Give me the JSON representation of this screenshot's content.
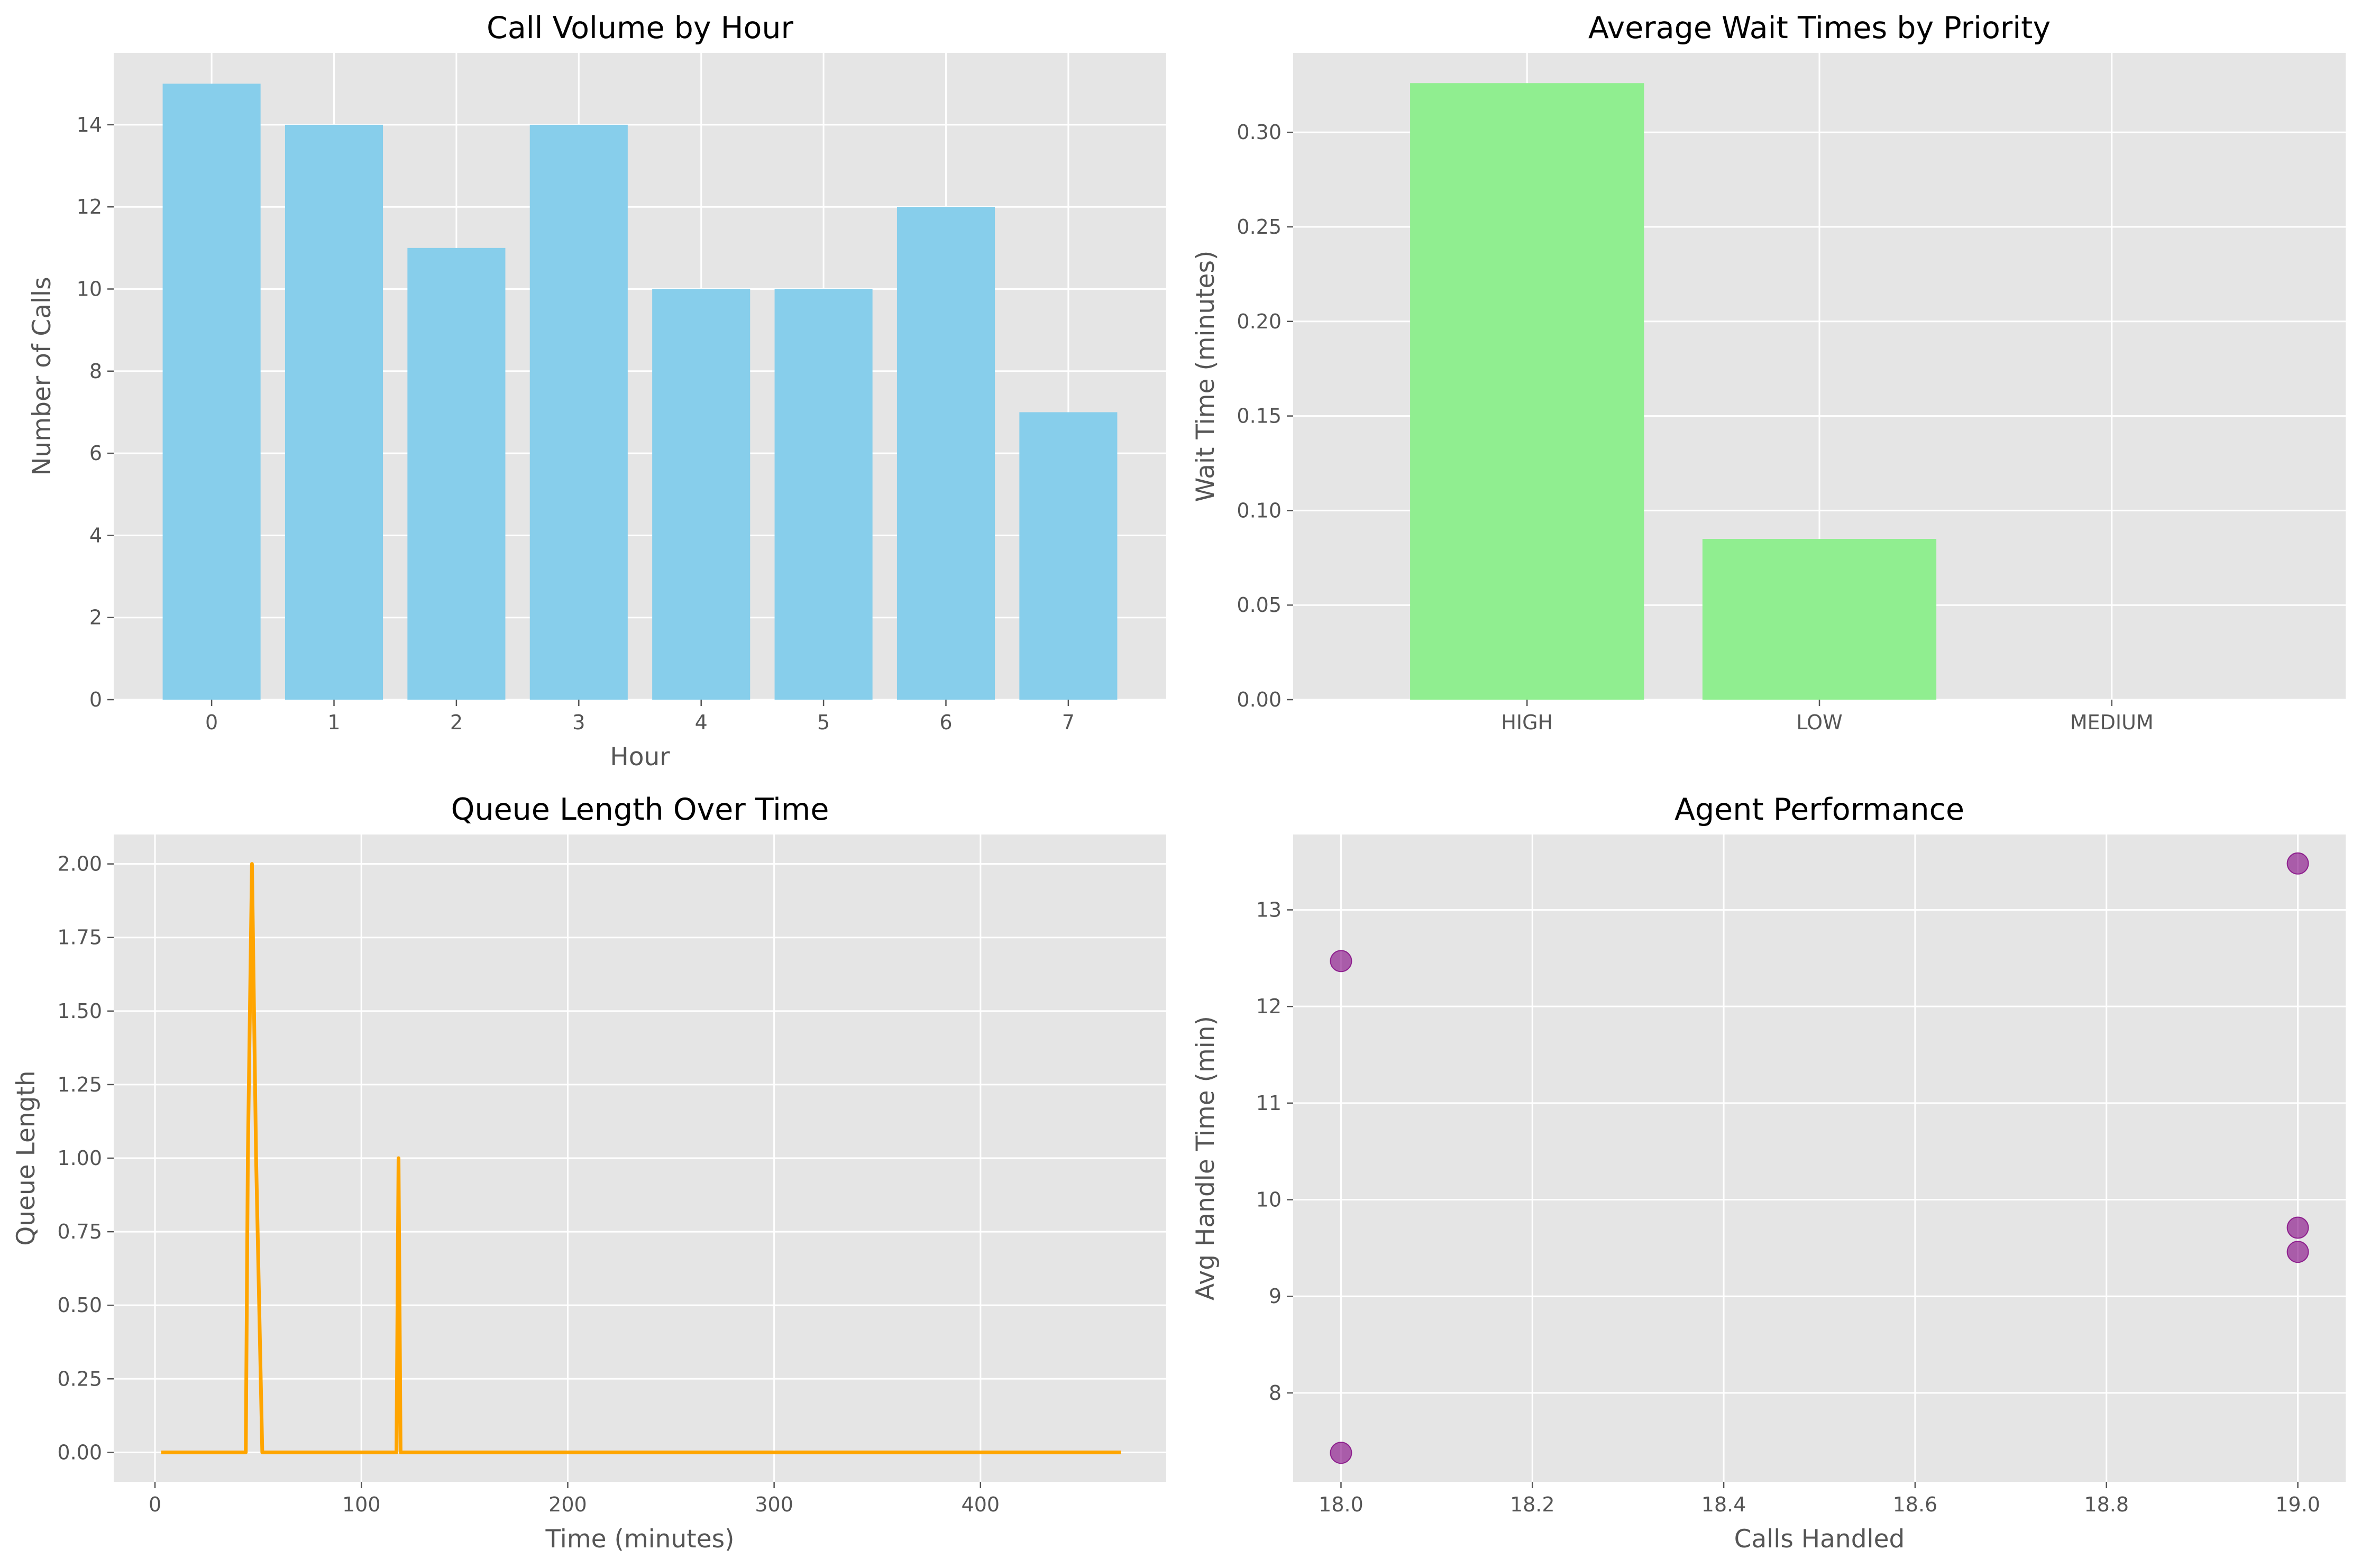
{
  "chart_data": [
    {
      "type": "bar",
      "title": "Call Volume by Hour",
      "xlabel": "Hour",
      "ylabel": "Number of Calls",
      "categories": [
        "0",
        "1",
        "2",
        "3",
        "4",
        "5",
        "6",
        "7"
      ],
      "values": [
        15,
        14,
        11,
        14,
        10,
        10,
        12,
        7
      ],
      "ylim": [
        0,
        15.75
      ],
      "yticks": [
        0,
        2,
        4,
        6,
        8,
        10,
        12,
        14
      ],
      "ytick_labels": [
        "0",
        "2",
        "4",
        "6",
        "8",
        "10",
        "12",
        "14"
      ],
      "color": "#87ceeb",
      "grid": true
    },
    {
      "type": "bar",
      "title": "Average Wait Times by Priority",
      "xlabel": "",
      "ylabel": "Wait Time (minutes)",
      "categories": [
        "HIGH",
        "LOW",
        "MEDIUM"
      ],
      "values": [
        0.326,
        0.085,
        0.0
      ],
      "ylim": [
        0,
        0.342
      ],
      "yticks": [
        0.0,
        0.05,
        0.1,
        0.15,
        0.2,
        0.25,
        0.3
      ],
      "ytick_labels": [
        "0.00",
        "0.05",
        "0.10",
        "0.15",
        "0.20",
        "0.25",
        "0.30"
      ],
      "color": "#90ee90",
      "grid": true
    },
    {
      "type": "line",
      "title": "Queue Length Over Time",
      "xlabel": "Time (minutes)",
      "ylabel": "Queue Length",
      "x": [
        3,
        44,
        45,
        47,
        49,
        52,
        117,
        118,
        119,
        468
      ],
      "y": [
        0,
        0,
        1,
        2,
        1,
        0,
        0,
        1,
        0,
        0
      ],
      "xlim": [
        -20,
        490
      ],
      "ylim": [
        -0.1,
        2.1
      ],
      "xticks": [
        0,
        100,
        200,
        300,
        400
      ],
      "xtick_labels": [
        "0",
        "100",
        "200",
        "300",
        "400"
      ],
      "yticks": [
        0,
        0.25,
        0.5,
        0.75,
        1.0,
        1.25,
        1.5,
        1.75,
        2.0
      ],
      "ytick_labels": [
        "0.00",
        "0.25",
        "0.50",
        "0.75",
        "1.00",
        "1.25",
        "1.50",
        "1.75",
        "2.00"
      ],
      "color": "#ffa500",
      "grid": true
    },
    {
      "type": "scatter",
      "title": "Agent Performance",
      "xlabel": "Calls Handled",
      "ylabel": "Avg Handle Time (min)",
      "x": [
        18,
        18,
        19,
        19,
        19
      ],
      "y": [
        12.47,
        7.38,
        13.48,
        9.71,
        9.46
      ],
      "xlim": [
        17.95,
        19.05
      ],
      "ylim": [
        7.08,
        13.78
      ],
      "xticks": [
        18.0,
        18.2,
        18.4,
        18.6,
        18.8,
        19.0
      ],
      "xtick_labels": [
        "18.0",
        "18.2",
        "18.4",
        "18.6",
        "18.8",
        "19.0"
      ],
      "yticks": [
        8,
        9,
        10,
        11,
        12,
        13
      ],
      "ytick_labels": [
        "8",
        "9",
        "10",
        "11",
        "12",
        "13"
      ],
      "color": "#800080",
      "grid": true
    }
  ]
}
